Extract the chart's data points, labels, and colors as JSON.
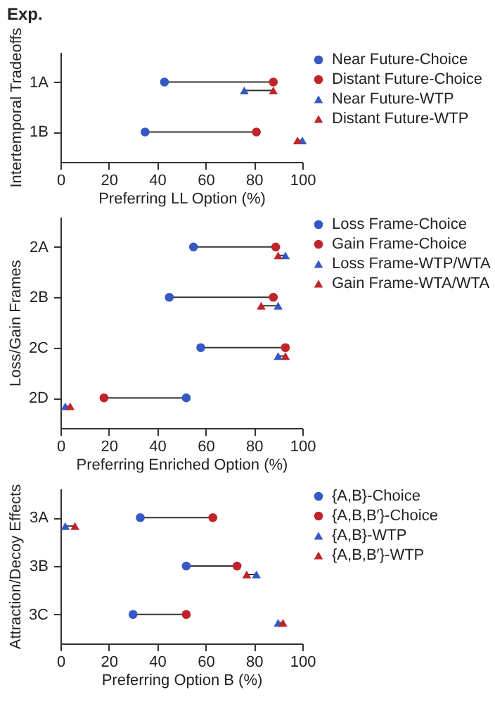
{
  "chart_data": [
    {
      "type": "scatter",
      "orientation": "horizontal",
      "title": "Exp.",
      "ylabel": "Intertemporal Tradeoffs",
      "xlabel": "Preferring LL Option (%)",
      "categories": [
        "1A",
        "1B"
      ],
      "xlim": [
        0,
        100
      ],
      "xticks": [
        0,
        20,
        40,
        60,
        80,
        100
      ],
      "legend": "right",
      "series": [
        {
          "name": "Near Future-Choice",
          "color": "#3558c5",
          "marker": "circle",
          "values": [
            43,
            35
          ]
        },
        {
          "name": "Distant Future-Choice",
          "color": "#c0242b",
          "marker": "circle",
          "values": [
            88,
            81
          ]
        },
        {
          "name": "Near Future-WTP",
          "color": "#3558c5",
          "marker": "triangle",
          "values": [
            76,
            100
          ]
        },
        {
          "name": "Distant Future-WTP",
          "color": "#c0242b",
          "marker": "triangle",
          "values": [
            88,
            98
          ]
        }
      ]
    },
    {
      "type": "scatter",
      "orientation": "horizontal",
      "ylabel": "Loss/Gain Frames",
      "xlabel": "Preferring Enriched Option (%)",
      "categories": [
        "2A",
        "2B",
        "2C",
        "2D"
      ],
      "xlim": [
        0,
        100
      ],
      "xticks": [
        0,
        20,
        40,
        60,
        80,
        100
      ],
      "legend": "right",
      "series": [
        {
          "name": "Loss Frame-Choice",
          "color": "#3558c5",
          "marker": "circle",
          "values": [
            55,
            45,
            58,
            52
          ]
        },
        {
          "name": "Gain Frame-Choice",
          "color": "#c0242b",
          "marker": "circle",
          "values": [
            89,
            88,
            93,
            18
          ]
        },
        {
          "name": "Loss Frame-WTP/WTA",
          "color": "#3558c5",
          "marker": "triangle",
          "values": [
            93,
            90,
            90,
            2
          ]
        },
        {
          "name": "Gain Frame-WTA/WTA",
          "color": "#c0242b",
          "marker": "triangle",
          "values": [
            90,
            83,
            93,
            4
          ]
        }
      ]
    },
    {
      "type": "scatter",
      "orientation": "horizontal",
      "ylabel": "Attraction/Decoy Effects",
      "xlabel": "Preferring Option B (%)",
      "categories": [
        "3A",
        "3B",
        "3C"
      ],
      "xlim": [
        0,
        100
      ],
      "xticks": [
        0,
        20,
        40,
        60,
        80,
        100
      ],
      "legend": "right",
      "series": [
        {
          "name": "{A,B}-Choice",
          "color": "#3558c5",
          "marker": "circle",
          "values": [
            33,
            52,
            30
          ]
        },
        {
          "name": "{A,B,B′}-Choice",
          "color": "#c0242b",
          "marker": "circle",
          "values": [
            63,
            73,
            52
          ]
        },
        {
          "name": "{A,B}-WTP",
          "color": "#3558c5",
          "marker": "triangle",
          "values": [
            2,
            81,
            90
          ]
        },
        {
          "name": "{A,B,B′}-WTP",
          "color": "#c0242b",
          "marker": "triangle",
          "values": [
            6,
            77,
            92
          ]
        }
      ]
    }
  ]
}
